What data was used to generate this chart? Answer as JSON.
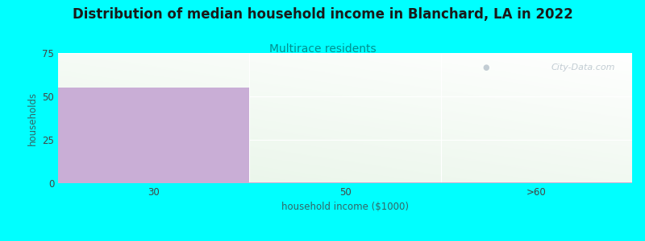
{
  "title": "Distribution of median household income in Blanchard, LA in 2022",
  "subtitle": "Multirace residents",
  "xlabel": "household income ($1000)",
  "ylabel": "households",
  "categories": [
    "30",
    "50",
    ">60"
  ],
  "values": [
    55,
    0,
    0
  ],
  "bar_color": "#c9aed6",
  "background_color": "#00ffff",
  "plot_bg_top": "#e8f5e8",
  "plot_bg_bottom": "#f8fff8",
  "plot_bg_right": "#ffffff",
  "yticks": [
    0,
    25,
    50,
    75
  ],
  "ylim": [
    0,
    75
  ],
  "title_fontsize": 12,
  "subtitle_fontsize": 10,
  "subtitle_color": "#009090",
  "axis_label_fontsize": 8.5,
  "tick_fontsize": 8.5,
  "watermark_text": "City-Data.com",
  "watermark_color": "#b8c4cc",
  "grid_color": "#ffffff",
  "thin_bar_height": 0.6,
  "ylabel_color": "#336666",
  "xlabel_color": "#336666",
  "title_color": "#1a1a1a"
}
